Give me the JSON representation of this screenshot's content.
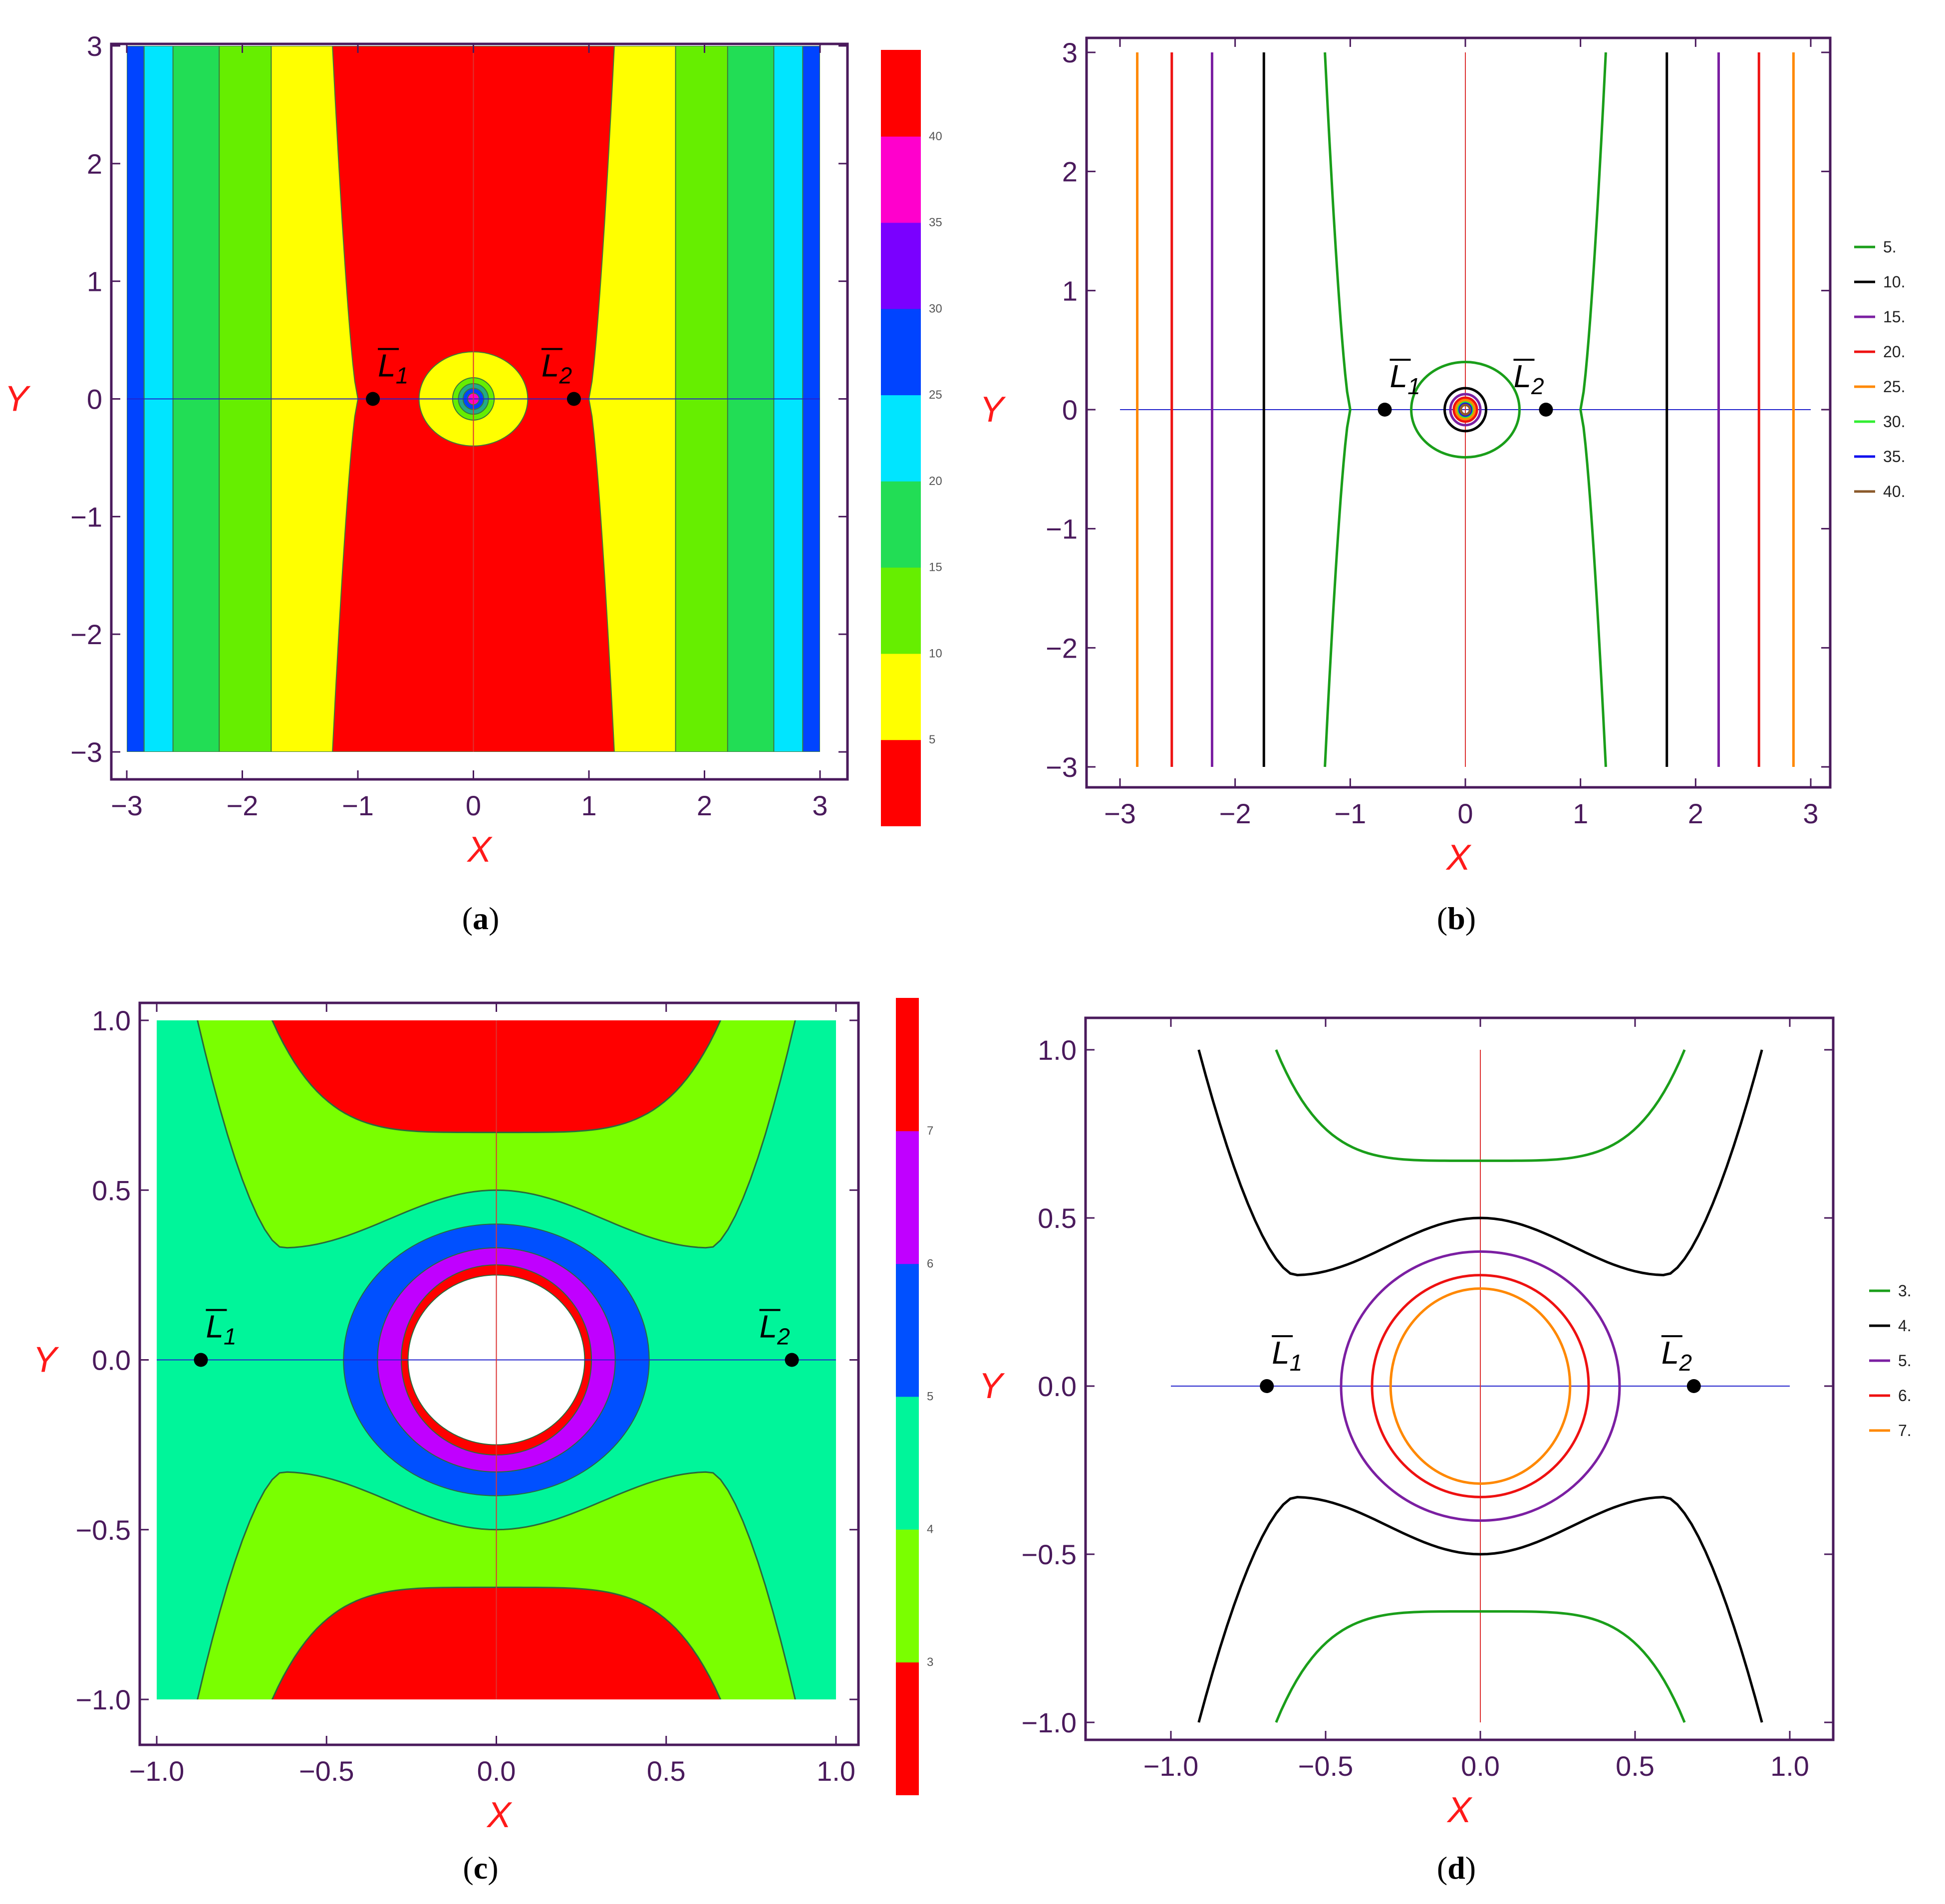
{
  "chart_data": [
    {
      "id": "a",
      "type": "contour_filled",
      "caption_letter": "a",
      "xlabel": "X",
      "ylabel": "Y",
      "xlim": [
        -3,
        3
      ],
      "ylim": [
        -3,
        3
      ],
      "xticks": [
        -3,
        -2,
        -1,
        0,
        1,
        2,
        3
      ],
      "yticks": [
        -3,
        -2,
        -1,
        0,
        1,
        2,
        3
      ],
      "xtick_labels": [
        "−3",
        "−2",
        "−1",
        "0",
        "1",
        "2",
        "3"
      ],
      "ytick_labels": [
        "−3",
        "−2",
        "−1",
        "0",
        "1",
        "2",
        "3"
      ],
      "bands": [
        {
          "color": "#ff0000",
          "x_bottom": 1.22,
          "x_mid": 1.0,
          "x_top": 1.22
        },
        {
          "color": "#ffff00",
          "x_bottom": 1.75,
          "x_mid": 1.75,
          "x_top": 1.75
        },
        {
          "color": "#66ee00",
          "x_bottom": 2.2,
          "x_mid": 2.2,
          "x_top": 2.2
        },
        {
          "color": "#22dd55",
          "x_bottom": 2.6,
          "x_mid": 2.6,
          "x_top": 2.6
        },
        {
          "color": "#00e5ff",
          "x_bottom": 2.85,
          "x_mid": 2.85,
          "x_top": 2.85
        },
        {
          "color": "#0044ff",
          "x_bottom": 3.0,
          "x_mid": 3.0,
          "x_top": 3.0
        }
      ],
      "center_rings": [
        {
          "rx": 0.47,
          "ry": 0.4,
          "color": "#ffff00"
        },
        {
          "rx": 0.18,
          "ry": 0.18,
          "color": "#66ee00"
        },
        {
          "rx": 0.13,
          "ry": 0.13,
          "color": "#22aa88"
        },
        {
          "rx": 0.09,
          "ry": 0.09,
          "color": "#0044ff"
        },
        {
          "rx": 0.05,
          "ry": 0.05,
          "color": "#ff00cc"
        }
      ],
      "points": [
        {
          "main": "L",
          "sub": "1",
          "x": -0.87,
          "y": 0
        },
        {
          "main": "L",
          "sub": "2",
          "x": 0.87,
          "y": 0
        }
      ],
      "colorbar": {
        "colors": [
          "#ff0000",
          "#ffff00",
          "#66ee00",
          "#22dd55",
          "#00e5ff",
          "#0044ff",
          "#7a00ff",
          "#ff00cc",
          "#ff0000"
        ],
        "tick_values": [
          5,
          10,
          15,
          20,
          25,
          30,
          35,
          40
        ],
        "tick_labels": [
          "5",
          "10",
          "15",
          "20",
          "25",
          "30",
          "35",
          "40"
        ]
      }
    },
    {
      "id": "b",
      "type": "contour_lines",
      "caption_letter": "b",
      "xlabel": "X",
      "ylabel": "Y",
      "xlim": [
        -3,
        3
      ],
      "ylim": [
        -3,
        3
      ],
      "xticks": [
        -3,
        -2,
        -1,
        0,
        1,
        2,
        3
      ],
      "yticks": [
        -3,
        -2,
        -1,
        0,
        1,
        2,
        3
      ],
      "xtick_labels": [
        "−3",
        "−2",
        "−1",
        "0",
        "1",
        "2",
        "3"
      ],
      "ytick_labels": [
        "−3",
        "−2",
        "−1",
        "0",
        "1",
        "2",
        "3"
      ],
      "levels": [
        {
          "label": "5.",
          "color": "#1a9e1a",
          "x_bottom": 1.22,
          "x_mid": 1.0,
          "x_top": 1.22,
          "ring": [
            0.47,
            0.4
          ]
        },
        {
          "label": "10.",
          "color": "#000000",
          "x_bottom": 1.75,
          "x_mid": 1.75,
          "x_top": 1.75,
          "ring": [
            0.18,
            0.18
          ]
        },
        {
          "label": "15.",
          "color": "#7b1fa2",
          "x_bottom": 2.2,
          "x_mid": 2.2,
          "x_top": 2.2,
          "ring": [
            0.13,
            0.13
          ]
        },
        {
          "label": "20.",
          "color": "#ee1111",
          "x_bottom": 2.55,
          "x_mid": 2.55,
          "x_top": 2.55,
          "ring": [
            0.1,
            0.1
          ]
        },
        {
          "label": "25.",
          "color": "#ff8800",
          "x_bottom": 2.85,
          "x_mid": 2.85,
          "x_top": 2.85,
          "ring": [
            0.08,
            0.08
          ]
        },
        {
          "label": "30.",
          "color": "#33ee33",
          "ring": [
            0.06,
            0.06
          ]
        },
        {
          "label": "35.",
          "color": "#1111ee",
          "ring": [
            0.05,
            0.05
          ]
        },
        {
          "label": "40.",
          "color": "#8b5a2b",
          "ring": [
            0.04,
            0.04
          ]
        }
      ],
      "points": [
        {
          "main": "L",
          "sub": "1",
          "x": -0.7,
          "y": 0
        },
        {
          "main": "L",
          "sub": "2",
          "x": 0.7,
          "y": 0
        }
      ]
    },
    {
      "id": "c",
      "type": "contour_filled",
      "caption_letter": "c",
      "xlabel": "X",
      "ylabel": "Y",
      "xlim": [
        -1,
        1
      ],
      "ylim": [
        -1,
        1
      ],
      "xticks": [
        -1,
        -0.5,
        0,
        0.5,
        1
      ],
      "yticks": [
        -1,
        -0.5,
        0,
        0.5,
        1
      ],
      "xtick_labels": [
        "−1.0",
        "−0.5",
        "0.0",
        "0.5",
        "1.0"
      ],
      "ytick_labels": [
        "−1.0",
        "−0.5",
        "0.0",
        "0.5",
        "1.0"
      ],
      "background": "#00f59a",
      "lobe_curves": {
        "level4": {
          "color": "#7aff00",
          "y_center": 0.5,
          "y_min_at": 0.33,
          "x_min_at": 0.63,
          "x_edge_at_top": 0.88
        },
        "level3": {
          "color": "#ff0000",
          "y_flat": 0.67,
          "x_edge_at_top": 0.66
        }
      },
      "center_rings": [
        {
          "rx": 0.45,
          "ry": 0.4,
          "color": "#0050ff"
        },
        {
          "rx": 0.35,
          "ry": 0.33,
          "color": "#c000ff"
        },
        {
          "rx": 0.28,
          "ry": 0.28,
          "color": "#ff0000"
        },
        {
          "rx": 0.26,
          "ry": 0.25,
          "color": "#ffffff"
        }
      ],
      "points": [
        {
          "main": "L",
          "sub": "1",
          "x": -0.87,
          "y": 0
        },
        {
          "main": "L",
          "sub": "2",
          "x": 0.87,
          "y": 0
        }
      ],
      "colorbar": {
        "colors": [
          "#ff0000",
          "#7aff00",
          "#00f59a",
          "#0050ff",
          "#c000ff",
          "#ff0000"
        ],
        "tick_values": [
          3,
          4,
          5,
          6,
          7
        ],
        "tick_labels": [
          "3",
          "4",
          "5",
          "6",
          "7"
        ]
      }
    },
    {
      "id": "d",
      "type": "contour_lines",
      "caption_letter": "d",
      "xlabel": "X",
      "ylabel": "Y",
      "xlim": [
        -1,
        1
      ],
      "ylim": [
        -1,
        1
      ],
      "xticks": [
        -1,
        -0.5,
        0,
        0.5,
        1
      ],
      "yticks": [
        -1,
        -0.5,
        0,
        0.5,
        1
      ],
      "xtick_labels": [
        "−1.0",
        "−0.5",
        "0.0",
        "0.5",
        "1.0"
      ],
      "ytick_labels": [
        "−1.0",
        "−0.5",
        "0.0",
        "0.5",
        "1.0"
      ],
      "levels": [
        {
          "label": "3.",
          "color": "#1a9e1a",
          "kind": "flat",
          "y_flat": 0.67,
          "x_edge_at_top": 0.66
        },
        {
          "label": "4.",
          "color": "#000000",
          "kind": "saddle",
          "y_center": 0.5,
          "y_min_at": 0.33,
          "x_min_at": 0.6,
          "x_edge_at_top": 0.91
        },
        {
          "label": "5.",
          "color": "#7b1fa2",
          "kind": "ring",
          "ring": [
            0.45,
            0.4
          ]
        },
        {
          "label": "6.",
          "color": "#ee1111",
          "kind": "ring",
          "ring": [
            0.35,
            0.33
          ]
        },
        {
          "label": "7.",
          "color": "#ff8800",
          "kind": "ring",
          "ring": [
            0.29,
            0.29
          ]
        }
      ],
      "points": [
        {
          "main": "L",
          "sub": "1",
          "x": -0.69,
          "y": 0
        },
        {
          "main": "L",
          "sub": "2",
          "x": 0.69,
          "y": 0
        }
      ]
    }
  ]
}
